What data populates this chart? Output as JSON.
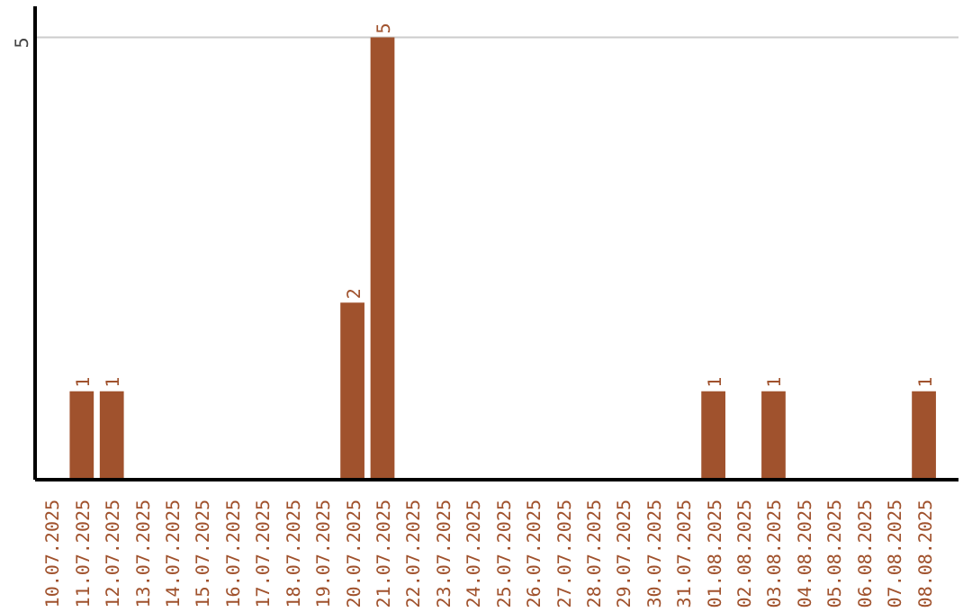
{
  "chart_data": {
    "type": "bar",
    "categories": [
      "10.07.2025",
      "11.07.2025",
      "12.07.2025",
      "13.07.2025",
      "14.07.2025",
      "15.07.2025",
      "16.07.2025",
      "17.07.2025",
      "18.07.2025",
      "19.07.2025",
      "20.07.2025",
      "21.07.2025",
      "22.07.2025",
      "23.07.2025",
      "24.07.2025",
      "25.07.2025",
      "26.07.2025",
      "27.07.2025",
      "28.07.2025",
      "29.07.2025",
      "30.07.2025",
      "31.07.2025",
      "01.08.2025",
      "02.08.2025",
      "03.08.2025",
      "04.08.2025",
      "05.08.2025",
      "06.08.2025",
      "07.08.2025",
      "08.08.2025"
    ],
    "values": [
      0,
      1,
      1,
      0,
      0,
      0,
      0,
      0,
      0,
      0,
      2,
      5,
      0,
      0,
      0,
      0,
      0,
      0,
      0,
      0,
      0,
      0,
      1,
      0,
      1,
      0,
      0,
      0,
      0,
      1
    ],
    "value_labels": [
      null,
      "1",
      "1",
      null,
      null,
      null,
      null,
      null,
      null,
      null,
      "2",
      "5",
      null,
      null,
      null,
      null,
      null,
      null,
      null,
      null,
      null,
      null,
      "1",
      null,
      "1",
      null,
      null,
      null,
      null,
      "1"
    ],
    "color": "#a0522d",
    "ref_lines": [
      {
        "axis": "y",
        "value": 5,
        "label": "5",
        "color": "#cccccc"
      }
    ]
  }
}
